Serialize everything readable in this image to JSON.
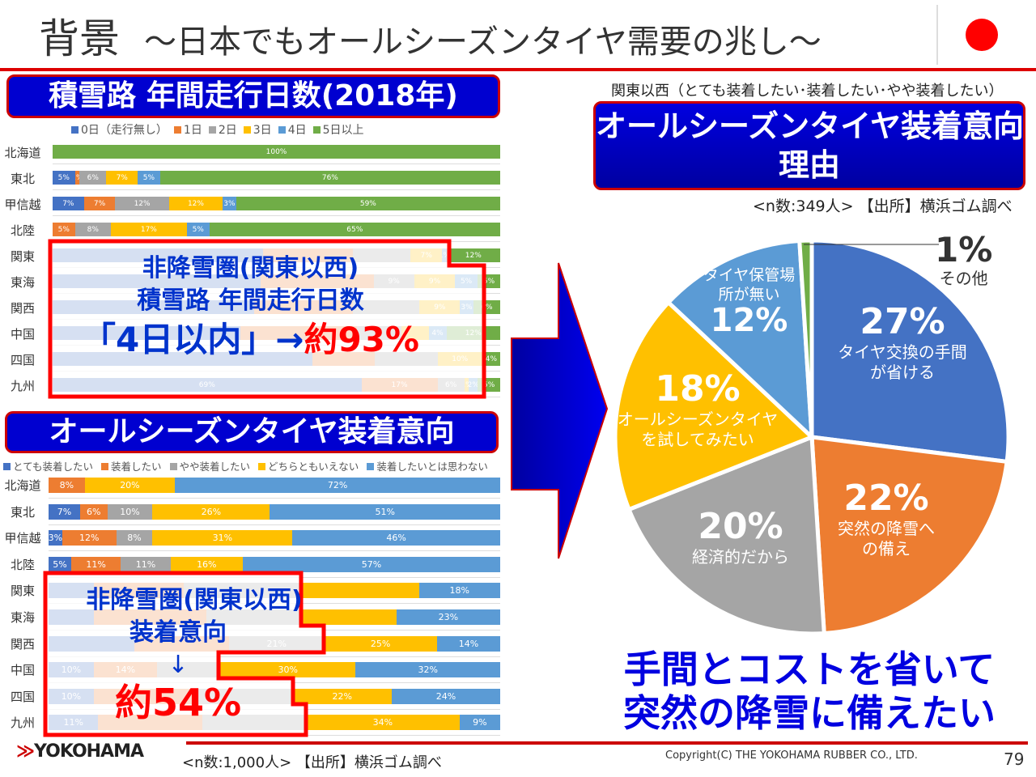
{
  "header": {
    "title": "背景",
    "subtitle": "～日本でもオールシーズンタイヤ需要の兆し～"
  },
  "left_top": {
    "banner": "積雪路 年間走行日数(2018年)",
    "overlay": {
      "line1": "非降雪圏(関東以西)",
      "line2": "積雪路 年間走行日数",
      "line3a": "「4日以内」→",
      "line3b": "約93%"
    }
  },
  "left_bottom": {
    "banner": "オールシーズンタイヤ装着意向",
    "overlay": {
      "line1": "非降雪圏(関東以西)",
      "line2": "装着意向",
      "arrow": "↓",
      "line3": "約54%"
    }
  },
  "right": {
    "note": "関東以西（とても装着したい･装着したい･やや装着したい）",
    "banner_line1": "オールシーズンタイヤ装着意向",
    "banner_line2": "理由",
    "source": "<n数:349人> 【出所】横浜ゴム調べ",
    "conclusion_line1": "手間とコストを省いて",
    "conclusion_line2": "突然の降雪に備えたい"
  },
  "footer": {
    "logo": "YOKOHAMA",
    "source": "<n数:1,000人> 【出所】横浜ゴム調べ",
    "copyright": "Copyright(C) THE YOKOHAMA RUBBER CO., LTD.",
    "page": "79"
  },
  "chart_data": [
    {
      "type": "bar",
      "orientation": "horizontal",
      "stacked": true,
      "unit": "%",
      "categories": [
        "北海道",
        "東北",
        "甲信越",
        "北陸",
        "関東",
        "東海",
        "関西",
        "中国",
        "四国",
        "九州"
      ],
      "series": [
        {
          "name": "0日（走行無し）",
          "color": "#4472c4",
          "values": [
            0,
            5,
            7,
            0,
            47,
            46,
            45,
            42,
            58,
            69
          ]
        },
        {
          "name": "1日",
          "color": "#ed7d31",
          "values": [
            0,
            1,
            7,
            5,
            20,
            25,
            22,
            26,
            14,
            17
          ]
        },
        {
          "name": "2日",
          "color": "#a5a5a5",
          "values": [
            0,
            6,
            12,
            8,
            13,
            9,
            15,
            10,
            14,
            6
          ]
        },
        {
          "name": "3日",
          "color": "#ffc000",
          "values": [
            0,
            7,
            12,
            17,
            7,
            9,
            9,
            6,
            10,
            1
          ]
        },
        {
          "name": "4日",
          "color": "#5b9bd5",
          "values": [
            0,
            5,
            3,
            5,
            1,
            5,
            3,
            4,
            0,
            2
          ]
        },
        {
          "name": "5日以上",
          "color": "#70ad47",
          "values": [
            100,
            76,
            59,
            65,
            12,
            5,
            6,
            12,
            4,
            5
          ]
        }
      ],
      "legend": "top"
    },
    {
      "type": "bar",
      "orientation": "horizontal",
      "stacked": true,
      "unit": "%",
      "categories": [
        "北海道",
        "東北",
        "甲信越",
        "北陸",
        "関東",
        "東海",
        "関西",
        "中国",
        "四国",
        "九州"
      ],
      "series": [
        {
          "name": "とても装着したい",
          "color": "#4472c4",
          "values": [
            0,
            7,
            3,
            5,
            10,
            10,
            19,
            10,
            10,
            11
          ]
        },
        {
          "name": "装着したい",
          "color": "#ed7d31",
          "values": [
            8,
            6,
            12,
            11,
            20,
            25,
            21,
            14,
            23,
            23
          ]
        },
        {
          "name": "やや装着したい",
          "color": "#a5a5a5",
          "values": [
            0,
            10,
            8,
            11,
            26,
            21,
            21,
            14,
            21,
            23
          ]
        },
        {
          "name": "どちらともいえない",
          "color": "#ffc000",
          "values": [
            20,
            26,
            31,
            16,
            26,
            21,
            25,
            30,
            22,
            34
          ]
        },
        {
          "name": "装着したいとは思わない",
          "color": "#5b9bd5",
          "values": [
            72,
            51,
            46,
            57,
            18,
            23,
            14,
            32,
            24,
            9
          ]
        }
      ],
      "legend": "top"
    },
    {
      "type": "pie",
      "unit": "%",
      "start": "12 o'clock",
      "direction": "clockwise",
      "slices": [
        {
          "label": "タイヤ交換の手間が省ける",
          "value": 27,
          "color": "#4472c4"
        },
        {
          "label": "突然の降雪への備え",
          "value": 22,
          "color": "#ed7d31"
        },
        {
          "label": "経済的だから",
          "value": 20,
          "color": "#a5a5a5"
        },
        {
          "label": "オールシーズンタイヤを試してみたい",
          "value": 18,
          "color": "#ffc000"
        },
        {
          "label": "タイヤ保管場所が無い",
          "value": 12,
          "color": "#5b9bd5"
        },
        {
          "label": "その他",
          "value": 1,
          "color": "#70ad47"
        }
      ]
    }
  ]
}
